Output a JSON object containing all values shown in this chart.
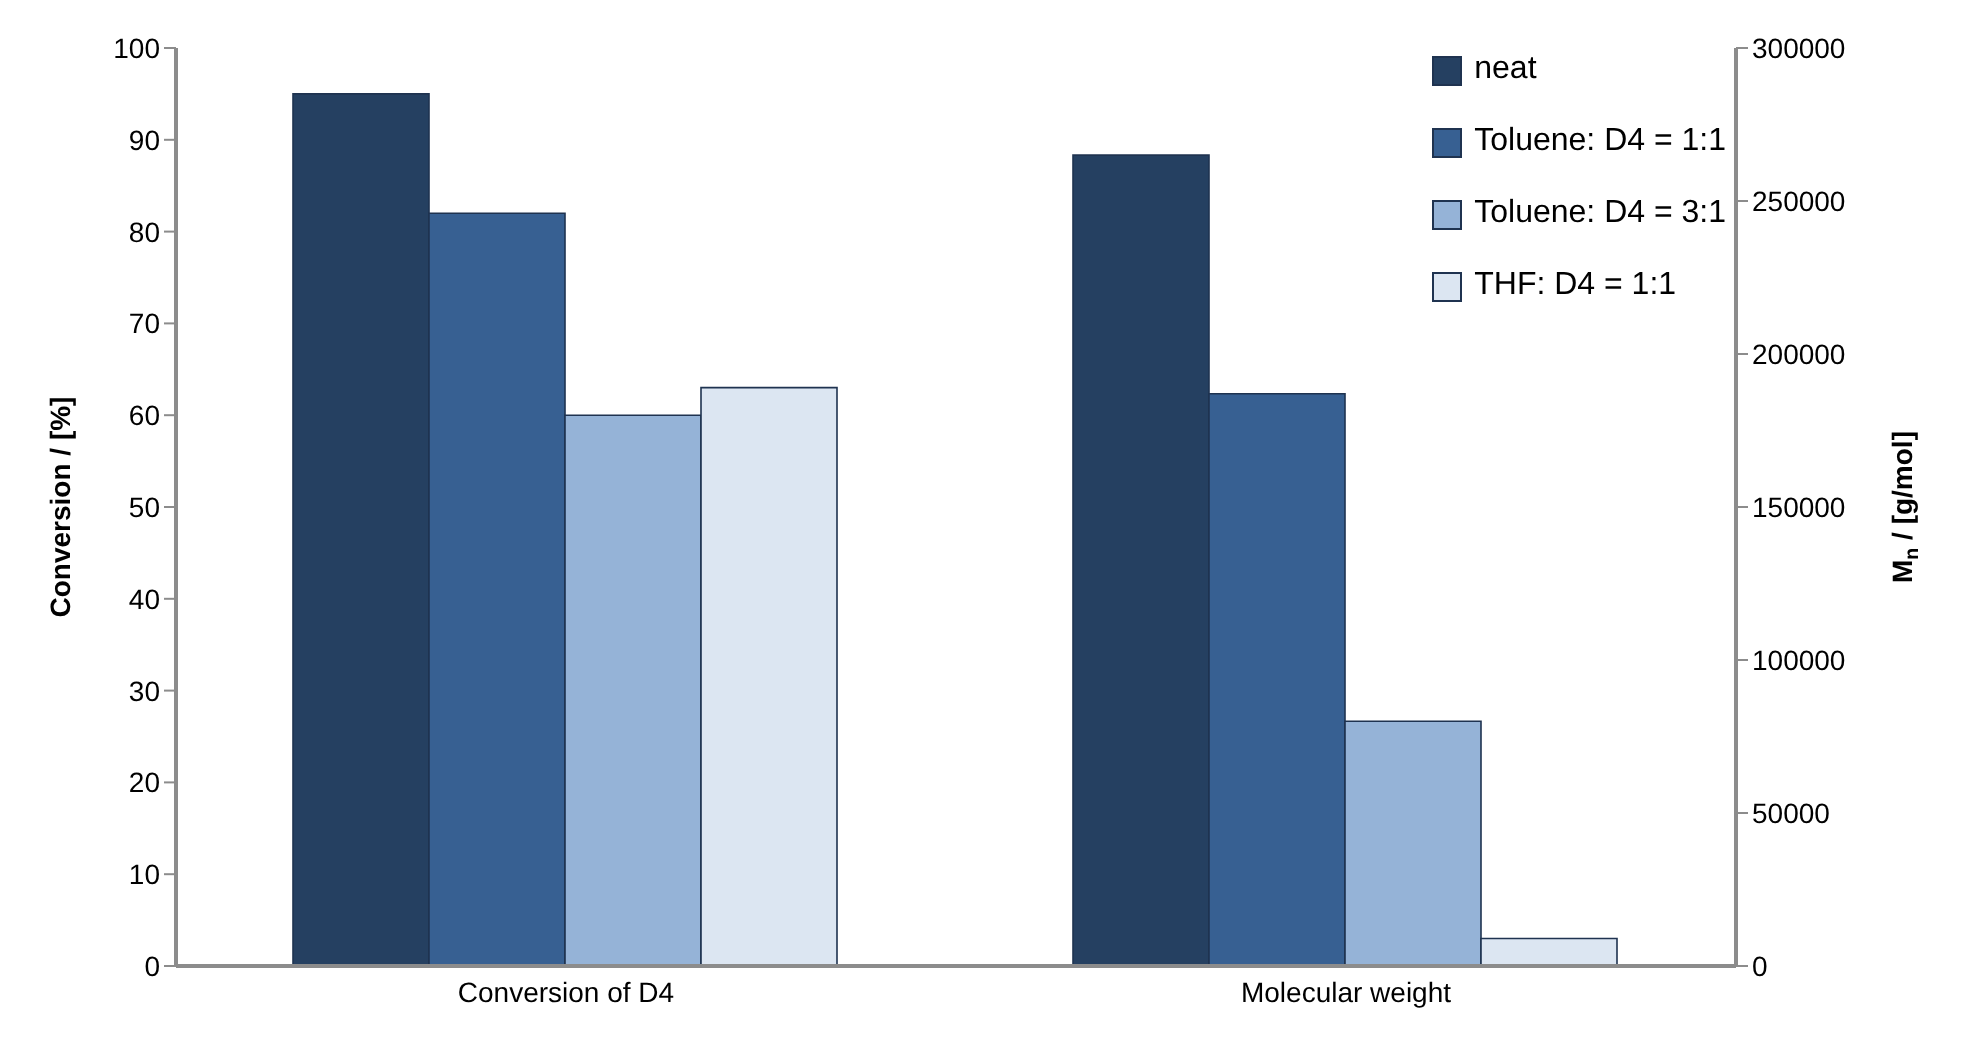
{
  "chart_data": [
    {
      "type": "bar",
      "ylabel": "Conversion / [%]",
      "categories": [
        "Conversion of D4"
      ],
      "ylim": [
        0,
        100
      ],
      "yticks": [
        0,
        10,
        20,
        30,
        40,
        50,
        60,
        70,
        80,
        90,
        100
      ],
      "grid": false,
      "legend": false,
      "series": [
        {
          "color": "#254061",
          "values": [
            95
          ]
        },
        {
          "color": "#376092",
          "values": [
            82
          ]
        },
        {
          "color": "#95b3d7",
          "values": [
            60
          ]
        },
        {
          "color": "#dce6f2",
          "values": [
            63
          ]
        }
      ]
    },
    {
      "type": "bar",
      "ylabel": "M$_{n}$ / [g/mol]",
      "categories": [
        "Molecular weight"
      ],
      "ylim": [
        0,
        300000
      ],
      "yticks": [
        0,
        50000,
        100000,
        150000,
        200000,
        250000,
        300000
      ],
      "grid": false,
      "legend": "top right",
      "series": [
        {
          "name": "neat",
          "color": "#254061",
          "values": [
            265000
          ]
        },
        {
          "name": "Toluene: D4 = 1:1",
          "color": "#376092",
          "values": [
            187000
          ]
        },
        {
          "name": "Toluene: D4 = 3:1",
          "color": "#95b3d7",
          "values": [
            80000
          ]
        },
        {
          "name": "THF: D4 = 1:1",
          "color": "#dce6f2",
          "values": [
            9000
          ]
        }
      ]
    }
  ]
}
